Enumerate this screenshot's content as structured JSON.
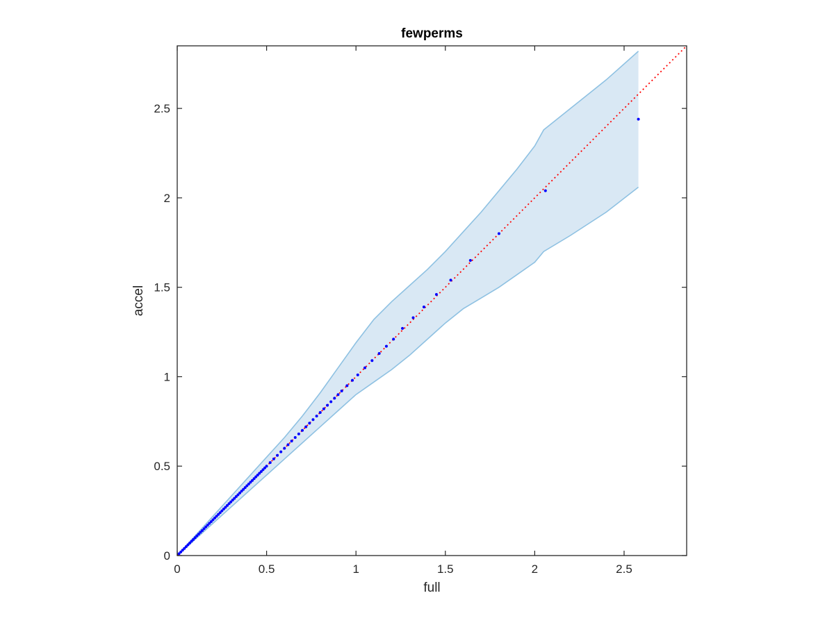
{
  "chart_data": {
    "type": "scatter",
    "title": "fewperms",
    "xlabel": "full",
    "ylabel": "accel",
    "xlim": [
      0,
      2.85
    ],
    "ylim": [
      0,
      2.85
    ],
    "xticks": [
      0,
      0.5,
      1,
      1.5,
      2,
      2.5
    ],
    "yticks": [
      0,
      0.5,
      1,
      1.5,
      2,
      2.5
    ],
    "xtick_labels": [
      "0",
      "0.5",
      "1",
      "1.5",
      "2",
      "2.5"
    ],
    "ytick_labels": [
      "0",
      "0.5",
      "1",
      "1.5",
      "2",
      "2.5"
    ],
    "grid": false,
    "colors": {
      "points": "#0000ff",
      "reference_line": "#ff0000",
      "band_fill": "#d9e8f4",
      "band_edge": "#8ec1e2",
      "axes": "#262626"
    },
    "reference_line": {
      "style": "dotted",
      "x": [
        0,
        2.85
      ],
      "y": [
        0,
        2.85
      ]
    },
    "band": {
      "x": [
        0,
        0.1,
        0.2,
        0.3,
        0.4,
        0.5,
        0.6,
        0.7,
        0.8,
        0.9,
        1.0,
        1.1,
        1.2,
        1.3,
        1.4,
        1.5,
        1.6,
        1.7,
        1.8,
        1.9,
        2.0,
        2.05,
        2.2,
        2.4,
        2.58
      ],
      "upper": [
        0,
        0.11,
        0.22,
        0.33,
        0.44,
        0.55,
        0.66,
        0.78,
        0.91,
        1.05,
        1.19,
        1.32,
        1.42,
        1.51,
        1.6,
        1.7,
        1.81,
        1.92,
        2.04,
        2.16,
        2.29,
        2.38,
        2.5,
        2.66,
        2.82
      ],
      "lower": [
        0,
        0.09,
        0.18,
        0.27,
        0.36,
        0.45,
        0.54,
        0.63,
        0.72,
        0.81,
        0.9,
        0.97,
        1.04,
        1.12,
        1.21,
        1.3,
        1.38,
        1.44,
        1.5,
        1.57,
        1.64,
        1.7,
        1.79,
        1.92,
        2.06
      ]
    },
    "series": [
      {
        "x": [
          0.01,
          0.02,
          0.03,
          0.04,
          0.05,
          0.06,
          0.07,
          0.08,
          0.09,
          0.1,
          0.11,
          0.12,
          0.13,
          0.14,
          0.15,
          0.16,
          0.17,
          0.18,
          0.19,
          0.2,
          0.21,
          0.22,
          0.23,
          0.24,
          0.25,
          0.26,
          0.27,
          0.28,
          0.29,
          0.3,
          0.31,
          0.32,
          0.33,
          0.34,
          0.35,
          0.36,
          0.37,
          0.38,
          0.39,
          0.4,
          0.41,
          0.42,
          0.43,
          0.44,
          0.45,
          0.46,
          0.47,
          0.48,
          0.49,
          0.5,
          0.52,
          0.54,
          0.56,
          0.58,
          0.6,
          0.62,
          0.64,
          0.66,
          0.68,
          0.7,
          0.72,
          0.74,
          0.76,
          0.78,
          0.8,
          0.82,
          0.84,
          0.86,
          0.88,
          0.9,
          0.92,
          0.95,
          0.98,
          1.01,
          1.05,
          1.09,
          1.13,
          1.17,
          1.21,
          1.26,
          1.32,
          1.38,
          1.45,
          1.53,
          1.64,
          1.8,
          2.06,
          2.58
        ],
        "y": [
          0.01,
          0.02,
          0.03,
          0.04,
          0.05,
          0.06,
          0.07,
          0.08,
          0.09,
          0.1,
          0.11,
          0.12,
          0.13,
          0.14,
          0.15,
          0.16,
          0.17,
          0.18,
          0.19,
          0.2,
          0.21,
          0.22,
          0.23,
          0.24,
          0.25,
          0.26,
          0.27,
          0.28,
          0.29,
          0.3,
          0.31,
          0.32,
          0.33,
          0.34,
          0.35,
          0.36,
          0.37,
          0.38,
          0.39,
          0.4,
          0.41,
          0.42,
          0.43,
          0.44,
          0.45,
          0.46,
          0.47,
          0.48,
          0.49,
          0.5,
          0.52,
          0.54,
          0.56,
          0.58,
          0.6,
          0.62,
          0.64,
          0.66,
          0.68,
          0.7,
          0.72,
          0.74,
          0.76,
          0.78,
          0.8,
          0.82,
          0.84,
          0.86,
          0.88,
          0.9,
          0.92,
          0.95,
          0.98,
          1.01,
          1.05,
          1.09,
          1.13,
          1.17,
          1.21,
          1.27,
          1.33,
          1.39,
          1.46,
          1.54,
          1.65,
          1.8,
          2.04,
          2.44
        ]
      }
    ]
  }
}
